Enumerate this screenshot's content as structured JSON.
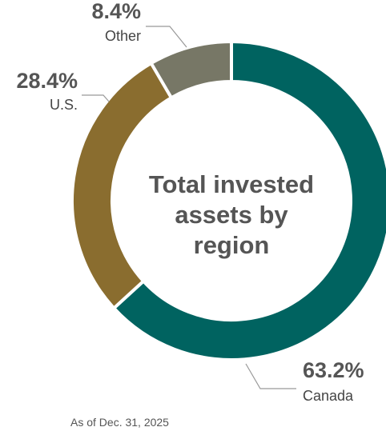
{
  "chart_data": {
    "type": "donut",
    "title": "Total invested assets by region",
    "categories": [
      "Canada",
      "U.S.",
      "Other"
    ],
    "values": [
      63.2,
      28.4,
      8.4
    ],
    "value_labels": [
      "63.2%",
      "28.4%",
      "8.4%"
    ],
    "colors": [
      "#006360",
      "#8a6d2f",
      "#777766"
    ],
    "note": "As of Dec. 31, 2025"
  }
}
